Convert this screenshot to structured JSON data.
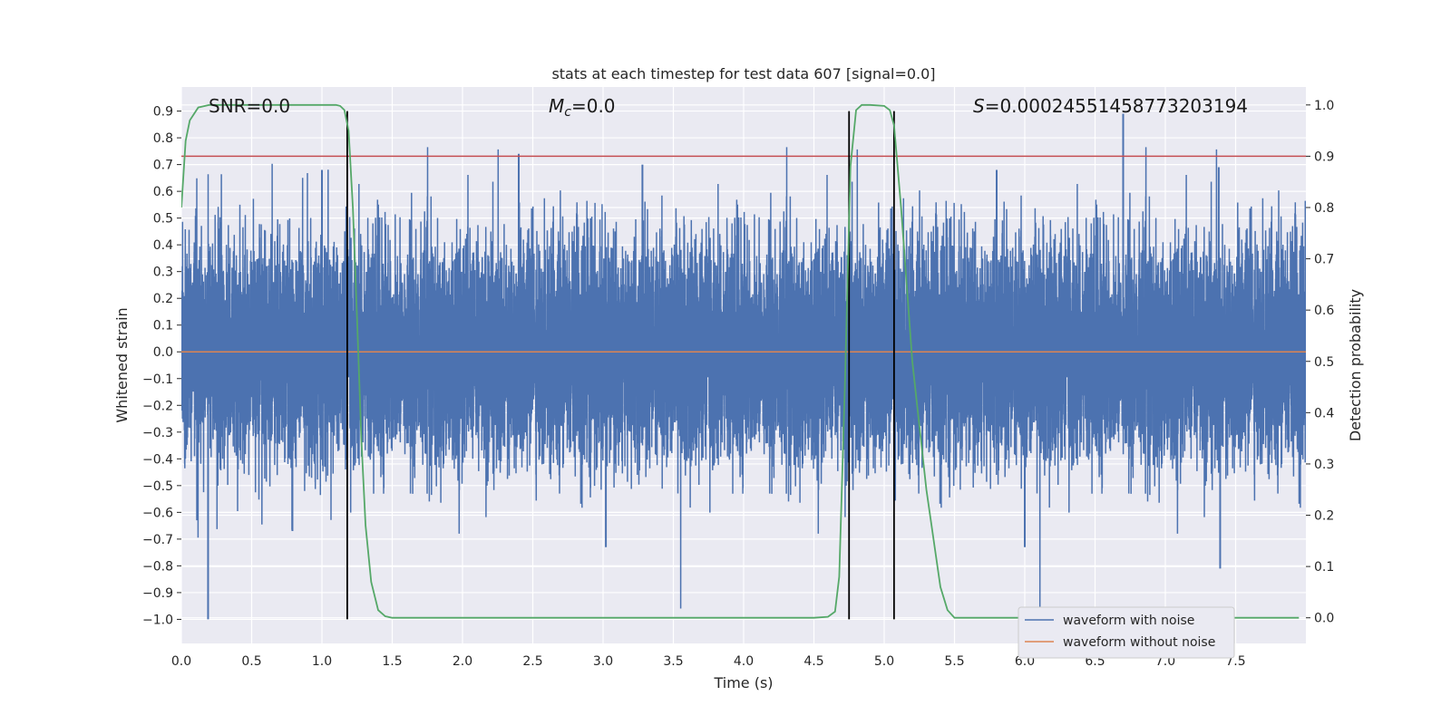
{
  "chart_data": {
    "type": "line",
    "title": "stats at each timestep for test data 607 [signal=0.0]",
    "xlabel": "Time (s)",
    "ylabel": "Whitened strain",
    "y2label": "Detection probability",
    "xlim": [
      0.0,
      8.0
    ],
    "ylim": [
      -1.09,
      0.99
    ],
    "y2lim": [
      -0.05,
      1.035
    ],
    "x_ticks": [
      0.0,
      0.5,
      1.0,
      1.5,
      2.0,
      2.5,
      3.0,
      3.5,
      4.0,
      4.5,
      5.0,
      5.5,
      6.0,
      6.5,
      7.0,
      7.5
    ],
    "x_tick_labels": [
      "0.0",
      "0.5",
      "1.0",
      "1.5",
      "2.0",
      "2.5",
      "3.0",
      "3.5",
      "4.0",
      "4.5",
      "5.0",
      "5.5",
      "6.0",
      "6.5",
      "7.0",
      "7.5"
    ],
    "y_ticks": [
      -1.0,
      -0.9,
      -0.8,
      -0.7,
      -0.6,
      -0.5,
      -0.4,
      -0.3,
      -0.2,
      -0.1,
      0.0,
      0.1,
      0.2,
      0.3,
      0.4,
      0.5,
      0.6,
      0.7,
      0.8,
      0.9
    ],
    "y_tick_labels": [
      "−1.0",
      "−0.9",
      "−0.8",
      "−0.7",
      "−0.6",
      "−0.5",
      "−0.4",
      "−0.3",
      "−0.2",
      "−0.1",
      "0.0",
      "0.1",
      "0.2",
      "0.3",
      "0.4",
      "0.5",
      "0.6",
      "0.7",
      "0.8",
      "0.9"
    ],
    "y2_ticks": [
      0.0,
      0.1,
      0.2,
      0.3,
      0.4,
      0.5,
      0.6,
      0.7,
      0.8,
      0.9,
      1.0
    ],
    "y2_tick_labels": [
      "0.0",
      "0.1",
      "0.2",
      "0.3",
      "0.4",
      "0.5",
      "0.6",
      "0.7",
      "0.8",
      "0.9",
      "1.0"
    ],
    "grid": true,
    "legend_position": "bottom-right",
    "annotations": {
      "snr": "SNR=0.0",
      "mc_symbol": "M",
      "mc_sub": "c",
      "mc_value": "=0.0",
      "s_symbol": "S",
      "s_value": "=0.00024551458773203194"
    },
    "threshold": {
      "y2": 0.9,
      "color": "#c44e52"
    },
    "vertical_lines_x": [
      1.18,
      4.75,
      5.07
    ],
    "series": [
      {
        "name": "waveform with noise",
        "color": "#4c72b0",
        "axis": "left",
        "sample_rate": 2048,
        "amplitude": 0.2,
        "spikes": [
          {
            "x": 0.19,
            "y": -1.0
          },
          {
            "x": 0.79,
            "y": -0.67
          },
          {
            "x": 2.4,
            "y": 0.74
          },
          {
            "x": 3.02,
            "y": -0.73
          },
          {
            "x": 3.28,
            "y": 0.7
          },
          {
            "x": 6.0,
            "y": -0.73
          },
          {
            "x": 6.7,
            "y": 0.89
          },
          {
            "x": 7.39,
            "y": -0.81
          },
          {
            "x": 7.38,
            "y": 0.69
          },
          {
            "x": 1.0,
            "y": 0.68
          },
          {
            "x": 5.8,
            "y": 0.68
          }
        ]
      },
      {
        "name": "waveform without noise",
        "color": "#dd8452",
        "axis": "left",
        "constant": 0.0
      },
      {
        "name": "detection probability",
        "color": "#55a868",
        "axis": "right",
        "x": [
          0.0,
          0.03,
          0.06,
          0.12,
          0.2,
          0.4,
          0.6,
          0.8,
          1.0,
          1.1,
          1.13,
          1.16,
          1.19,
          1.22,
          1.25,
          1.28,
          1.31,
          1.35,
          1.4,
          1.45,
          1.5,
          2.0,
          2.5,
          3.0,
          3.5,
          4.0,
          4.5,
          4.6,
          4.65,
          4.68,
          4.72,
          4.76,
          4.8,
          4.84,
          4.9,
          5.0,
          5.04,
          5.07,
          5.12,
          5.2,
          5.3,
          5.4,
          5.45,
          5.5,
          6.0,
          6.5,
          7.0,
          7.5,
          7.95
        ],
        "y": [
          0.8,
          0.93,
          0.97,
          0.995,
          1.0,
          1.0,
          1.0,
          1.0,
          1.0,
          1.0,
          0.998,
          0.99,
          0.95,
          0.8,
          0.58,
          0.35,
          0.18,
          0.07,
          0.015,
          0.003,
          0.0,
          0.0,
          0.0,
          0.0,
          0.0,
          0.0,
          0.0,
          0.002,
          0.012,
          0.08,
          0.45,
          0.88,
          0.99,
          1.0,
          1.0,
          0.998,
          0.99,
          0.96,
          0.8,
          0.5,
          0.25,
          0.06,
          0.015,
          0.0,
          0.0,
          0.0,
          0.0,
          0.0,
          0.0
        ]
      }
    ]
  }
}
